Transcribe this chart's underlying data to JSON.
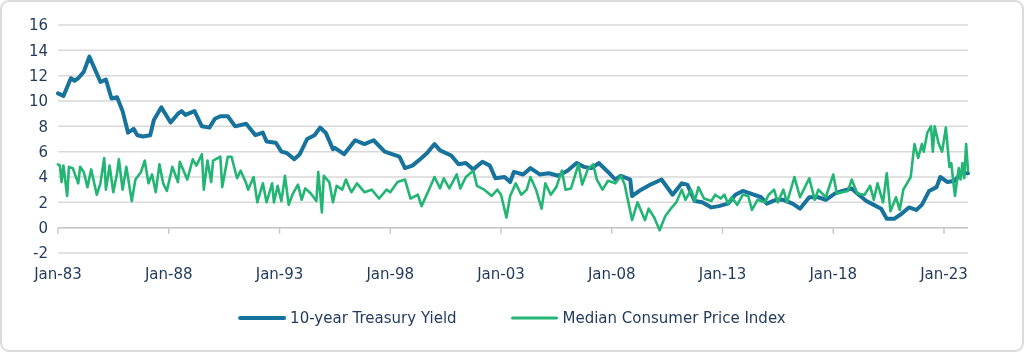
{
  "chart_data": {
    "type": "line",
    "xlim": [
      "1983-01",
      "2024-02"
    ],
    "ylim": [
      -2,
      16
    ],
    "yticks": [
      -2,
      0,
      2,
      4,
      6,
      8,
      10,
      12,
      14,
      16
    ],
    "xticks": [
      {
        "value": "1983-01",
        "label": "Jan-83"
      },
      {
        "value": "1988-01",
        "label": "Jan-88"
      },
      {
        "value": "1993-01",
        "label": "Jan-93"
      },
      {
        "value": "1998-01",
        "label": "Jan-98"
      },
      {
        "value": "2003-01",
        "label": "Jan-03"
      },
      {
        "value": "2008-01",
        "label": "Jan-08"
      },
      {
        "value": "2013-01",
        "label": "Jan-13"
      },
      {
        "value": "2018-01",
        "label": "Jan-18"
      },
      {
        "value": "2023-01",
        "label": "Jan-23"
      }
    ],
    "grid": "y",
    "legend": "bottom",
    "line_style": "solid",
    "marker": "none",
    "series": [
      {
        "name": "10-year Treasury Yield",
        "color": "#17729c",
        "x": [
          "1983-01",
          "1983-04",
          "1983-08",
          "1983-10",
          "1983-12",
          "1984-03",
          "1984-06",
          "1984-09",
          "1984-12",
          "1985-03",
          "1985-06",
          "1985-09",
          "1985-12",
          "1986-03",
          "1986-06",
          "1986-08",
          "1986-11",
          "1987-03",
          "1987-05",
          "1987-09",
          "1988-02",
          "1988-06",
          "1988-08",
          "1988-10",
          "1989-03",
          "1989-07",
          "1989-11",
          "1990-02",
          "1990-05",
          "1990-09",
          "1991-01",
          "1991-07",
          "1991-12",
          "1992-04",
          "1992-06",
          "1992-11",
          "1993-02",
          "1993-05",
          "1993-09",
          "1993-12",
          "1994-04",
          "1994-08",
          "1994-11",
          "1995-02",
          "1995-06",
          "1995-07",
          "1995-12",
          "1996-06",
          "1996-11",
          "1997-04",
          "1997-10",
          "1998-06",
          "1998-09",
          "1999-01",
          "1999-06",
          "1999-09",
          "2000-01",
          "2000-04",
          "2000-10",
          "2001-02",
          "2001-06",
          "2001-10",
          "2002-03",
          "2002-07",
          "2002-10",
          "2003-03",
          "2003-06",
          "2003-08",
          "2004-01",
          "2004-05",
          "2004-10",
          "2005-03",
          "2005-08",
          "2006-01",
          "2006-06",
          "2006-10",
          "2007-02",
          "2007-06",
          "2007-11",
          "2008-03",
          "2008-06",
          "2008-11",
          "2008-12",
          "2009-05",
          "2009-10",
          "2010-04",
          "2010-10",
          "2011-03",
          "2011-06",
          "2011-10",
          "2012-02",
          "2012-07",
          "2012-11",
          "2013-04",
          "2013-08",
          "2013-12",
          "2014-04",
          "2014-10",
          "2015-01",
          "2015-06",
          "2015-10",
          "2016-03",
          "2016-07",
          "2016-12",
          "2017-05",
          "2017-09",
          "2018-02",
          "2018-06",
          "2018-11",
          "2019-02",
          "2019-07",
          "2019-11",
          "2020-03",
          "2020-06",
          "2020-10",
          "2021-02",
          "2021-06",
          "2021-10",
          "2022-01",
          "2022-05",
          "2022-09",
          "2022-11",
          "2023-03",
          "2023-07",
          "2023-10",
          "2024-02"
        ],
        "values": [
          10.6,
          10.4,
          11.8,
          11.6,
          11.8,
          12.3,
          13.5,
          12.5,
          11.5,
          11.7,
          10.2,
          10.3,
          9.2,
          7.5,
          7.8,
          7.3,
          7.2,
          7.3,
          8.5,
          9.5,
          8.3,
          9.0,
          9.2,
          8.9,
          9.2,
          8.0,
          7.9,
          8.6,
          8.8,
          8.8,
          8.0,
          8.2,
          7.3,
          7.5,
          6.8,
          6.7,
          6.0,
          5.9,
          5.4,
          5.8,
          7.0,
          7.3,
          7.9,
          7.5,
          6.2,
          6.3,
          5.8,
          6.9,
          6.6,
          6.9,
          6.0,
          5.6,
          4.7,
          4.9,
          5.5,
          5.9,
          6.6,
          6.1,
          5.7,
          5.0,
          5.1,
          4.6,
          5.2,
          4.9,
          3.9,
          4.0,
          3.6,
          4.4,
          4.2,
          4.7,
          4.2,
          4.3,
          4.1,
          4.5,
          5.1,
          4.8,
          4.7,
          5.1,
          4.4,
          3.8,
          4.1,
          3.8,
          2.5,
          3.0,
          3.4,
          3.8,
          2.6,
          3.5,
          3.4,
          2.1,
          2.0,
          1.6,
          1.7,
          1.9,
          2.6,
          2.9,
          2.7,
          2.4,
          1.9,
          2.2,
          2.2,
          1.9,
          1.5,
          2.4,
          2.4,
          2.2,
          2.7,
          2.9,
          3.1,
          2.7,
          2.1,
          1.8,
          1.5,
          0.7,
          0.7,
          1.1,
          1.6,
          1.4,
          1.8,
          2.9,
          3.2,
          4.0,
          3.6,
          3.7,
          4.3,
          4.3
        ]
      },
      {
        "name": "Median Consumer Price Index",
        "color": "#22b574",
        "x": [
          "1983-01",
          "1983-02",
          "1983-03",
          "1983-04",
          "1983-06",
          "1983-07",
          "1983-09",
          "1983-12",
          "1984-01",
          "1984-03",
          "1984-05",
          "1984-07",
          "1984-10",
          "1984-12",
          "1985-02",
          "1985-03",
          "1985-05",
          "1985-07",
          "1985-09",
          "1985-10",
          "1985-12",
          "1986-02",
          "1986-05",
          "1986-07",
          "1986-10",
          "1986-12",
          "1987-02",
          "1987-04",
          "1987-06",
          "1987-08",
          "1987-10",
          "1987-12",
          "1988-03",
          "1988-06",
          "1988-07",
          "1988-11",
          "1989-02",
          "1989-04",
          "1989-07",
          "1989-08",
          "1989-10",
          "1989-12",
          "1990-01",
          "1990-05",
          "1990-06",
          "1990-09",
          "1990-11",
          "1991-02",
          "1991-04",
          "1991-07",
          "1991-08",
          "1991-11",
          "1992-01",
          "1992-04",
          "1992-06",
          "1992-09",
          "1992-10",
          "1992-12",
          "1993-02",
          "1993-04",
          "1993-06",
          "1993-08",
          "1993-11",
          "1994-01",
          "1994-03",
          "1994-06",
          "1994-09",
          "1994-10",
          "1994-12",
          "1995-01",
          "1995-04",
          "1995-06",
          "1995-08",
          "1995-11",
          "1996-01",
          "1996-03",
          "1996-04",
          "1996-07",
          "1996-11",
          "1997-03",
          "1997-07",
          "1997-11",
          "1998-01",
          "1998-05",
          "1998-09",
          "1998-12",
          "1999-04",
          "1999-06",
          "1999-10",
          "2000-01",
          "2000-04",
          "2000-06",
          "2000-09",
          "2001-01",
          "2001-03",
          "2001-06",
          "2001-10",
          "2001-12",
          "2002-04",
          "2002-08",
          "2002-11",
          "2003-01",
          "2003-04",
          "2003-06",
          "2003-09",
          "2003-12",
          "2004-03",
          "2004-05",
          "2004-08",
          "2004-11",
          "2005-01",
          "2005-04",
          "2005-07",
          "2005-10",
          "2005-12",
          "2006-03",
          "2006-07",
          "2006-09",
          "2006-12",
          "2007-03",
          "2007-05",
          "2007-08",
          "2007-11",
          "2008-03",
          "2008-06",
          "2008-08",
          "2008-10",
          "2008-12",
          "2009-03",
          "2009-07",
          "2009-09",
          "2009-12",
          "2010-03",
          "2010-06",
          "2010-09",
          "2010-12",
          "2011-03",
          "2011-05",
          "2011-08",
          "2011-10",
          "2011-12",
          "2012-03",
          "2012-07",
          "2012-09",
          "2012-12",
          "2013-02",
          "2013-04",
          "2013-06",
          "2013-09",
          "2013-12",
          "2014-03",
          "2014-05",
          "2014-08",
          "2014-12",
          "2015-02",
          "2015-05",
          "2015-07",
          "2015-10",
          "2015-12",
          "2016-04",
          "2016-07",
          "2016-09",
          "2016-12",
          "2017-03",
          "2017-05",
          "2017-09",
          "2018-01",
          "2018-03",
          "2018-06",
          "2018-09",
          "2018-11",
          "2019-02",
          "2019-06",
          "2019-09",
          "2019-11",
          "2020-01",
          "2020-04",
          "2020-06",
          "2020-08",
          "2020-11",
          "2021-01",
          "2021-03",
          "2021-05",
          "2021-07",
          "2021-09",
          "2021-11",
          "2022-01",
          "2022-02",
          "2022-04",
          "2022-06",
          "2022-07",
          "2022-08",
          "2022-10",
          "2022-12",
          "2023-02",
          "2023-04",
          "2023-05",
          "2023-07",
          "2023-09",
          "2023-10",
          "2023-11",
          "2023-12",
          "2024-01",
          "2024-02"
        ],
        "values": [
          5.0,
          4.9,
          3.6,
          4.9,
          2.5,
          4.8,
          4.7,
          3.5,
          4.8,
          4.4,
          3.2,
          4.6,
          2.6,
          3.5,
          5.5,
          3.0,
          4.9,
          2.8,
          4.3,
          5.4,
          3.0,
          4.8,
          2.1,
          3.8,
          4.4,
          5.3,
          3.5,
          4.2,
          2.8,
          5.0,
          3.5,
          2.9,
          4.8,
          3.6,
          5.2,
          3.8,
          5.4,
          4.9,
          5.8,
          3.0,
          5.3,
          3.6,
          5.3,
          5.6,
          3.2,
          5.6,
          5.6,
          3.9,
          4.5,
          3.5,
          3.0,
          4.0,
          2.0,
          3.5,
          2.0,
          3.5,
          2.0,
          3.3,
          2.1,
          4.1,
          1.8,
          2.6,
          3.4,
          2.2,
          3.1,
          2.7,
          2.1,
          4.4,
          1.2,
          4.1,
          3.6,
          2.0,
          3.3,
          3.0,
          3.8,
          3.1,
          2.8,
          3.5,
          2.8,
          3.0,
          2.3,
          3.0,
          2.8,
          3.6,
          3.8,
          2.3,
          2.6,
          1.7,
          3.0,
          4.0,
          3.1,
          3.9,
          3.1,
          4.2,
          3.1,
          4.0,
          4.5,
          3.3,
          3.0,
          2.5,
          3.0,
          2.6,
          0.8,
          2.5,
          3.5,
          2.6,
          3.0,
          4.0,
          3.0,
          1.5,
          3.5,
          2.6,
          3.2,
          4.5,
          3.0,
          3.1,
          5.0,
          3.4,
          4.6,
          5.0,
          3.8,
          3.0,
          3.7,
          3.5,
          4.1,
          3.4,
          2.0,
          0.6,
          2.0,
          0.6,
          1.5,
          0.8,
          -0.2,
          0.9,
          1.5,
          2.0,
          3.0,
          2.2,
          3.0,
          2.1,
          3.2,
          2.3,
          2.1,
          2.6,
          2.3,
          2.6,
          1.9,
          2.4,
          1.8,
          2.6,
          2.5,
          1.4,
          2.2,
          2.0,
          2.6,
          3.0,
          2.0,
          3.0,
          2.0,
          4.0,
          2.4,
          3.0,
          3.9,
          2.2,
          3.0,
          2.4,
          4.2,
          2.7,
          2.8,
          2.9,
          3.8,
          2.7,
          2.6,
          3.3,
          2.2,
          3.5,
          2.0,
          4.3,
          1.3,
          2.4,
          1.4,
          3.0,
          3.5,
          4.0,
          6.6,
          5.5,
          6.6,
          6.0,
          7.5,
          8.0,
          6.0,
          8.0,
          6.7,
          6.0,
          7.9,
          4.8,
          5.1,
          2.5,
          4.7,
          3.8,
          5.1,
          3.9,
          6.6,
          4.5
        ]
      }
    ]
  }
}
